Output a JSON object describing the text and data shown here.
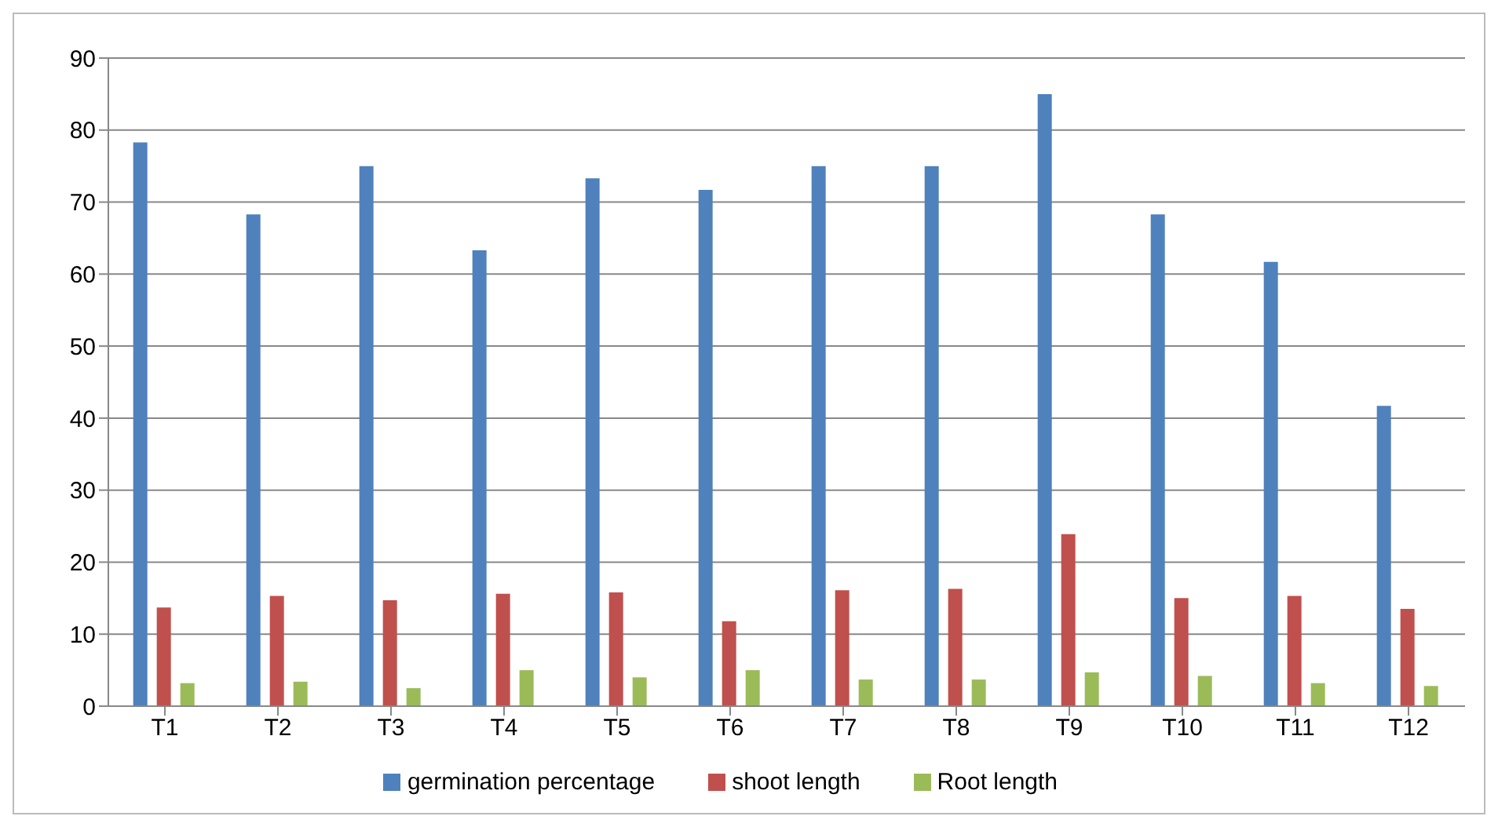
{
  "chart_data": {
    "type": "bar",
    "categories": [
      "T1",
      "T2",
      "T3",
      "T4",
      "T5",
      "T6",
      "T7",
      "T8",
      "T9",
      "T10",
      "T11",
      "T12"
    ],
    "series": [
      {
        "name": "germination percentage",
        "color": "#4f81bd",
        "values": [
          78.3,
          68.3,
          75,
          63.3,
          73.3,
          71.7,
          75,
          75,
          85,
          68.3,
          61.7,
          41.7
        ]
      },
      {
        "name": "shoot length",
        "color": "#c0504d",
        "values": [
          13.7,
          15.3,
          14.7,
          15.6,
          15.8,
          11.8,
          16.1,
          16.3,
          23.9,
          15,
          15.3,
          13.5
        ]
      },
      {
        "name": "Root length",
        "color": "#9bbb59",
        "values": [
          3.2,
          3.4,
          2.5,
          5,
          4,
          5,
          3.7,
          3.7,
          4.7,
          4.2,
          3.2,
          2.8
        ]
      }
    ],
    "ylim": [
      0,
      90
    ],
    "yticks": [
      0,
      10,
      20,
      30,
      40,
      50,
      60,
      70,
      80,
      90
    ],
    "grid": "y",
    "legend": "bottom"
  }
}
